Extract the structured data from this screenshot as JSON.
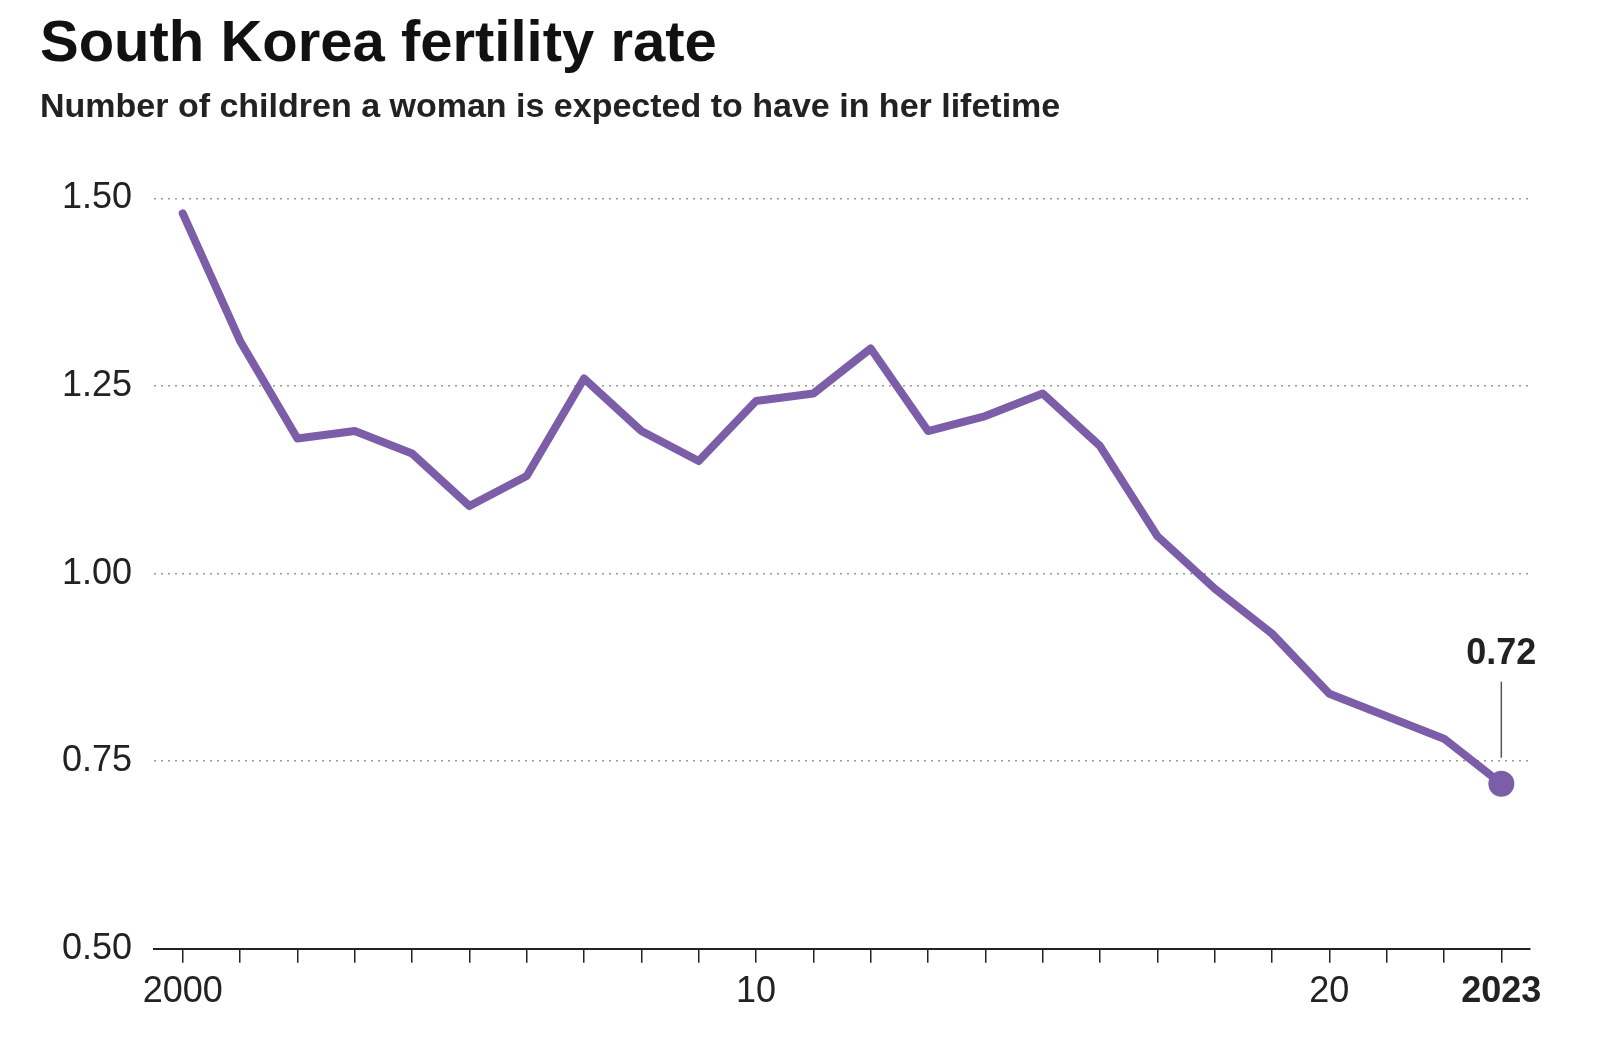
{
  "chart_data": {
    "type": "line",
    "title": "South Korea fertility rate",
    "subtitle": "Number of children a woman is expected to have in her lifetime",
    "categories": [
      "2000",
      null,
      null,
      null,
      null,
      null,
      null,
      null,
      null,
      null,
      "10",
      null,
      null,
      null,
      null,
      null,
      null,
      null,
      null,
      null,
      "20",
      null,
      null,
      "2023"
    ],
    "values": [
      1.48,
      1.31,
      1.18,
      1.19,
      1.16,
      1.09,
      1.13,
      1.26,
      1.19,
      1.15,
      1.23,
      1.24,
      1.3,
      1.19,
      1.21,
      1.24,
      1.17,
      1.05,
      0.98,
      0.92,
      0.84,
      0.81,
      0.78,
      0.72
    ],
    "color": "#7b5ea7",
    "ylim": [
      0.5,
      1.5
    ],
    "yticks": [
      {
        "value": 0.5,
        "label": "0.50"
      },
      {
        "value": 0.75,
        "label": "0.75"
      },
      {
        "value": 1,
        "label": "1.00"
      },
      {
        "value": 1.25,
        "label": "1.25"
      },
      {
        "value": 1.5,
        "label": "1.50"
      }
    ],
    "grid": true,
    "annotations": [
      {
        "category": "2023",
        "text": "0.72"
      }
    ]
  }
}
